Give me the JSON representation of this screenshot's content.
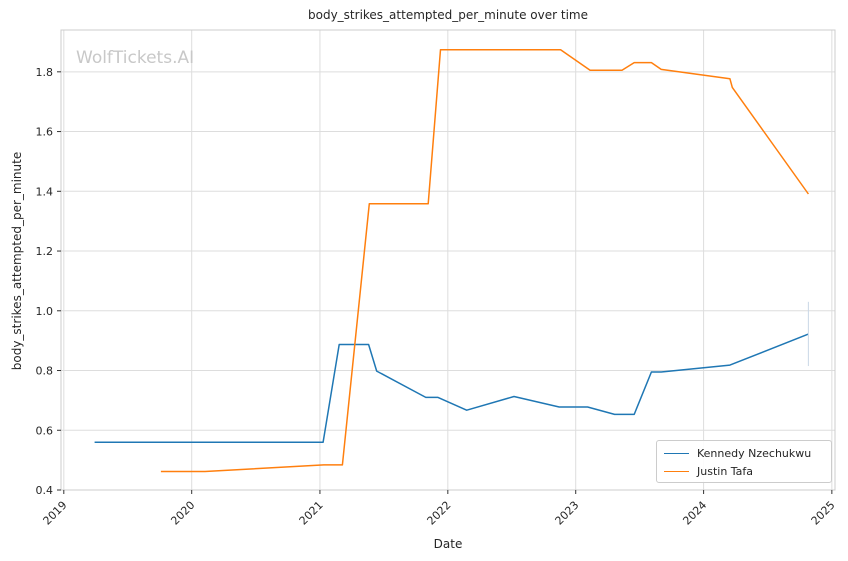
{
  "chart_data": {
    "type": "line",
    "title": "body_strikes_attempted_per_minute over time",
    "xlabel": "Date",
    "ylabel": "body_strikes_attempted_per_minute",
    "watermark": "WolfTickets.AI",
    "x_ticks": [
      "2019",
      "2020",
      "2021",
      "2022",
      "2023",
      "2024",
      "2025"
    ],
    "y_ticks": [
      "0.4",
      "0.6",
      "0.8",
      "1.0",
      "1.2",
      "1.4",
      "1.6",
      "1.8"
    ],
    "xlim": [
      "2018-12-24",
      "2025-01-10"
    ],
    "ylim": [
      0.4,
      1.94
    ],
    "grid": true,
    "legend_position": "lower-right",
    "series": [
      {
        "name": "Kennedy Nzechukwu",
        "color": "#1f77b4",
        "points": [
          [
            "2019-03-30",
            0.56
          ],
          [
            "2021-01-10",
            0.56
          ],
          [
            "2021-02-25",
            0.887
          ],
          [
            "2021-05-20",
            0.887
          ],
          [
            "2021-06-12",
            0.798
          ],
          [
            "2021-10-30",
            0.71
          ],
          [
            "2021-12-04",
            0.71
          ],
          [
            "2022-02-24",
            0.667
          ],
          [
            "2022-07-09",
            0.713
          ],
          [
            "2022-11-15",
            0.678
          ],
          [
            "2023-02-04",
            0.678
          ],
          [
            "2023-04-22",
            0.653
          ],
          [
            "2023-06-17",
            0.653
          ],
          [
            "2023-08-05",
            0.795
          ],
          [
            "2023-09-02",
            0.795
          ],
          [
            "2024-03-16",
            0.818
          ],
          [
            "2024-10-26",
            0.922
          ]
        ]
      },
      {
        "name": "Justin Tafa",
        "color": "#ff7f0e",
        "points": [
          [
            "2019-10-05",
            0.462
          ],
          [
            "2020-02-08",
            0.462
          ],
          [
            "2021-01-12",
            0.484
          ],
          [
            "2021-03-06",
            0.484
          ],
          [
            "2021-05-22",
            1.358
          ],
          [
            "2021-11-06",
            1.358
          ],
          [
            "2021-12-11",
            1.874
          ],
          [
            "2022-11-19",
            1.874
          ],
          [
            "2023-02-11",
            1.805
          ],
          [
            "2023-05-13",
            1.805
          ],
          [
            "2023-06-17",
            1.831
          ],
          [
            "2023-08-05",
            1.831
          ],
          [
            "2023-09-02",
            1.808
          ],
          [
            "2024-03-16",
            1.777
          ],
          [
            "2024-03-23",
            1.748
          ],
          [
            "2024-10-26",
            1.391
          ]
        ]
      }
    ],
    "errorbar": {
      "series": "Kennedy Nzechukwu",
      "x": "2024-10-26",
      "low": 0.815,
      "high": 1.03
    }
  }
}
